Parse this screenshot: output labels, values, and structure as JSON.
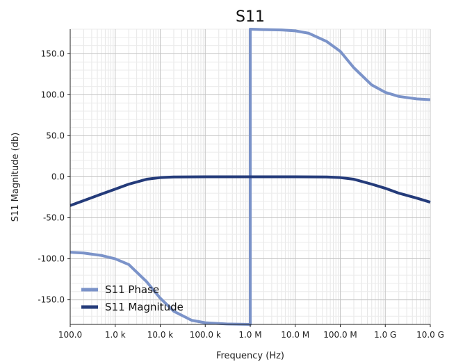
{
  "chart_data": {
    "type": "line",
    "title": "S11",
    "xlabel": "Frequency (Hz)",
    "ylabel": "S11 Magnitude (db)",
    "x_scale": "log",
    "xlim": [
      100,
      10000000000
    ],
    "ylim": [
      -180,
      180
    ],
    "grid": true,
    "legend_position": "lower-left",
    "x_ticks": [
      {
        "value": 100,
        "label": "100.0"
      },
      {
        "value": 1000,
        "label": "1.0 k"
      },
      {
        "value": 10000,
        "label": "10.0 k"
      },
      {
        "value": 100000,
        "label": "100.0 k"
      },
      {
        "value": 1000000,
        "label": "1.0 M"
      },
      {
        "value": 10000000,
        "label": "10.0 M"
      },
      {
        "value": 100000000,
        "label": "100.0 M"
      },
      {
        "value": 1000000000,
        "label": "1.0 G"
      },
      {
        "value": 10000000000,
        "label": "10.0 G"
      }
    ],
    "y_ticks": [
      {
        "value": 150,
        "label": "150.0"
      },
      {
        "value": 100,
        "label": "100.0"
      },
      {
        "value": 50,
        "label": "50.0"
      },
      {
        "value": 0,
        "label": "0.0"
      },
      {
        "value": -50,
        "label": "-50.0"
      },
      {
        "value": -100,
        "label": "-100.0"
      },
      {
        "value": -150,
        "label": "-150.0"
      }
    ],
    "series": [
      {
        "name": "S11 Phase",
        "color": "#7b93c9",
        "points": [
          [
            100,
            -92
          ],
          [
            200,
            -93
          ],
          [
            500,
            -96
          ],
          [
            1000,
            -100
          ],
          [
            2000,
            -107
          ],
          [
            5000,
            -128
          ],
          [
            10000,
            -148
          ],
          [
            20000,
            -164
          ],
          [
            50000,
            -175
          ],
          [
            100000,
            -178
          ],
          [
            300000,
            -179.5
          ],
          [
            1000000,
            -180
          ],
          [
            1000000,
            180
          ],
          [
            2000000,
            179.5
          ],
          [
            5000000,
            179
          ],
          [
            10000000,
            178
          ],
          [
            20000000,
            175
          ],
          [
            50000000,
            165
          ],
          [
            100000000,
            153
          ],
          [
            200000000,
            133
          ],
          [
            500000000,
            112
          ],
          [
            1000000000,
            103
          ],
          [
            2000000000,
            98
          ],
          [
            5000000000,
            95
          ],
          [
            10000000000,
            94
          ]
        ]
      },
      {
        "name": "S11 Magnitude",
        "color": "#243b7a",
        "points": [
          [
            100,
            -35
          ],
          [
            200,
            -29
          ],
          [
            500,
            -21
          ],
          [
            1000,
            -15
          ],
          [
            2000,
            -9
          ],
          [
            5000,
            -3
          ],
          [
            10000,
            -1
          ],
          [
            20000,
            -0.2
          ],
          [
            100000,
            0
          ],
          [
            1000000,
            0
          ],
          [
            10000000,
            0
          ],
          [
            50000000,
            -0.2
          ],
          [
            100000000,
            -1
          ],
          [
            200000000,
            -3
          ],
          [
            500000000,
            -9
          ],
          [
            1000000000,
            -14
          ],
          [
            2000000000,
            -20
          ],
          [
            5000000000,
            -26
          ],
          [
            10000000000,
            -31
          ]
        ]
      }
    ]
  }
}
